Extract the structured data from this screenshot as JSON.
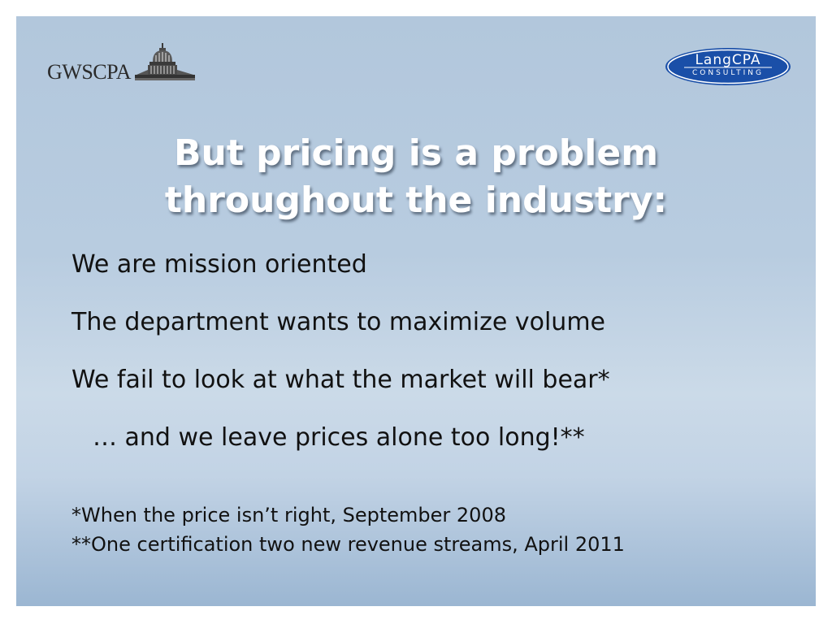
{
  "logos": {
    "left": {
      "text": "GWSCPA",
      "icon": "capitol-dome-icon"
    },
    "right": {
      "line1": "LangCPA",
      "line2": "CONSULTING",
      "color": "#1a4fa8"
    }
  },
  "title": {
    "line1": "But pricing is a problem",
    "line2": "throughout the industry:"
  },
  "bullets": [
    "We are mission oriented",
    "The department wants to maximize volume",
    "We fail to look at what the market will bear*",
    "… and we leave prices alone too long!**"
  ],
  "footnotes": [
    "*When the price isn’t right, September 2008",
    "**One certification two new revenue streams, April 2011"
  ],
  "colors": {
    "background_top": "#b2c7dc",
    "background_bottom": "#9bb6d2",
    "title": "#ffffff",
    "text": "#111111"
  }
}
